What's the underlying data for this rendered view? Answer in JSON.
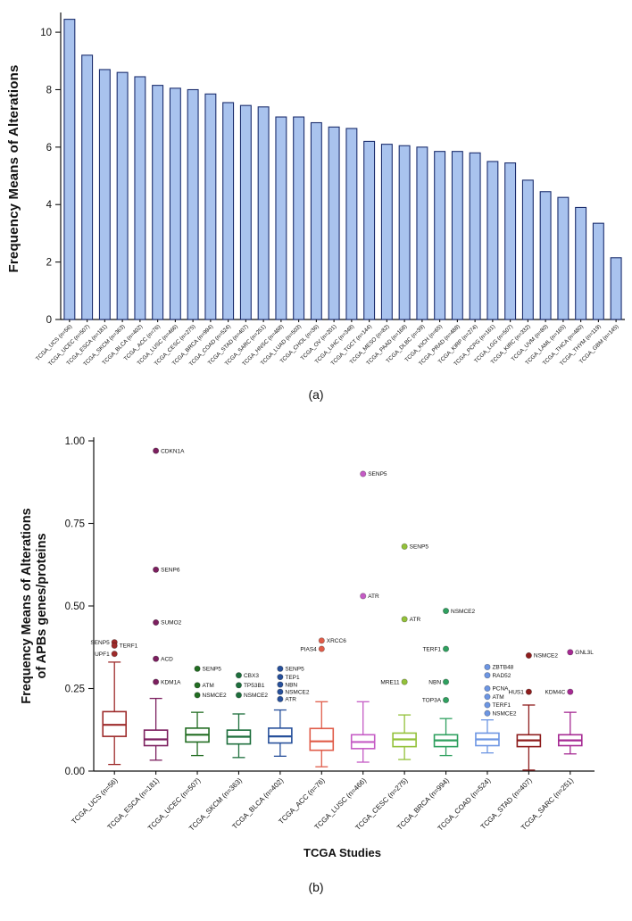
{
  "figure": {
    "panel_a_caption": "(a)",
    "panel_b_caption": "(b)"
  },
  "chart_data": [
    {
      "type": "bar",
      "panel": "a",
      "title": "",
      "ylabel": "Frequency Means of Alterations",
      "xlabel": "",
      "ylim": [
        0,
        10.5
      ],
      "yticks": [
        0,
        2,
        4,
        6,
        8,
        10
      ],
      "grid": false,
      "legend": false,
      "bar_fill": "#a9c3ee",
      "bar_stroke": "#1c2e6e",
      "categories": [
        "TCGA_UCS (n=56)",
        "TCGA_UCEC (n=507)",
        "TCGA_ESCA (n=181)",
        "TCGA_SKCM (n=363)",
        "TCGA_BLCA (n=402)",
        "TCGA_ACC (n=76)",
        "TCGA_LUSC (n=466)",
        "TCGA_CESC (n=275)",
        "TCGA_BRCA (n=994)",
        "TCGA_COAD (n=524)",
        "TCGA_STAD (n=407)",
        "TCGA_SARC (n=251)",
        "TCGA_HNSC (n=488)",
        "TCGA_LUAD (n=503)",
        "TCGA_CHOL (n=36)",
        "TCGA_OV (n=201)",
        "TCGA_LIHC (n=348)",
        "TCGA_TGCT (n=144)",
        "TCGA_MESO (n=82)",
        "TCGA_PAAD (n=168)",
        "TCGA_DLBC (n=39)",
        "TCGA_KICH (n=65)",
        "TCGA_PRAD (n=488)",
        "TCGA_KIRP (n=274)",
        "TCGA_PCPG (n=161)",
        "TCGA_LGG (n=507)",
        "TCGA_KIRC (n=332)",
        "TCGA_UVM (n=80)",
        "TCGA_LAML (n=165)",
        "TCGA_THCA (n=480)",
        "TCGA_THYM (n=119)",
        "TCGA_GBM (n=145)"
      ],
      "values": [
        10.45,
        9.2,
        8.7,
        8.6,
        8.45,
        8.15,
        8.05,
        8.0,
        7.85,
        7.55,
        7.45,
        7.4,
        7.05,
        7.05,
        6.85,
        6.7,
        6.65,
        6.2,
        6.1,
        6.05,
        6.0,
        5.85,
        5.85,
        5.8,
        5.5,
        5.45,
        4.85,
        4.45,
        4.25,
        3.9,
        3.35,
        2.15
      ]
    },
    {
      "type": "box",
      "panel": "b",
      "title": "",
      "ylabel_line1": "Frequency Means of  Alterations",
      "ylabel_line2": "of APBs genes/proteins",
      "xlabel": "TCGA Studies",
      "ylim": [
        0,
        1.0
      ],
      "grid": false,
      "legend": false,
      "yticks": [
        {
          "v": 0,
          "label": "0.00"
        },
        {
          "v": 0.25,
          "label": "0.25"
        },
        {
          "v": 0.5,
          "label": "0.50"
        },
        {
          "v": 0.75,
          "label": "0.75"
        },
        {
          "v": 1.0,
          "label": "1.00"
        }
      ],
      "boxes": [
        {
          "label": "TCGA_UCS (n=56)",
          "color": "#9e2b2b",
          "whisker_low": 0.02,
          "q1": 0.105,
          "median": 0.14,
          "q3": 0.18,
          "whisker_high": 0.33,
          "outliers": [
            {
              "name": "SENP5",
              "value": 0.39,
              "side": "left"
            },
            {
              "name": "TERF1",
              "value": 0.38,
              "side": "right"
            },
            {
              "name": "UPF1",
              "value": 0.355,
              "side": "left"
            }
          ]
        },
        {
          "label": "TCGA_ESCA (n=181)",
          "color": "#7c1f5f",
          "whisker_low": 0.033,
          "q1": 0.077,
          "median": 0.096,
          "q3": 0.124,
          "whisker_high": 0.22,
          "outliers": [
            {
              "name": "CDKN1A",
              "value": 0.97,
              "side": "right"
            },
            {
              "name": "SENP6",
              "value": 0.61,
              "side": "right"
            },
            {
              "name": "SUMO2",
              "value": 0.45,
              "side": "right"
            },
            {
              "name": "ACD",
              "value": 0.34,
              "side": "right"
            },
            {
              "name": "KDM1A",
              "value": 0.27,
              "side": "right"
            }
          ]
        },
        {
          "label": "TCGA_UCEC (n=507)",
          "color": "#226d22",
          "whisker_low": 0.047,
          "q1": 0.088,
          "median": 0.11,
          "q3": 0.13,
          "whisker_high": 0.178,
          "outliers": [
            {
              "name": "SENP5",
              "value": 0.31,
              "side": "right"
            },
            {
              "name": "ATM",
              "value": 0.26,
              "side": "right"
            },
            {
              "name": "NSMCE2",
              "value": 0.23,
              "side": "right"
            }
          ]
        },
        {
          "label": "TCGA_SKCM (n=363)",
          "color": "#1d6e3c",
          "whisker_low": 0.041,
          "q1": 0.082,
          "median": 0.104,
          "q3": 0.124,
          "whisker_high": 0.173,
          "outliers": [
            {
              "name": "CBX3",
              "value": 0.29,
              "side": "right"
            },
            {
              "name": "TP53B1",
              "value": 0.26,
              "side": "right"
            },
            {
              "name": "NSMCE2",
              "value": 0.23,
              "side": "right"
            }
          ]
        },
        {
          "label": "TCGA_BLCA (n=402)",
          "color": "#27509b",
          "whisker_low": 0.045,
          "q1": 0.085,
          "median": 0.105,
          "q3": 0.13,
          "whisker_high": 0.185,
          "outliers": [
            {
              "name": "SENP5",
              "value": 0.31,
              "side": "right"
            },
            {
              "name": "TEP1",
              "value": 0.285,
              "side": "right"
            },
            {
              "name": "NBN",
              "value": 0.262,
              "side": "right"
            },
            {
              "name": "NSMCE2",
              "value": 0.24,
              "side": "right"
            },
            {
              "name": "ATR",
              "value": 0.218,
              "side": "right"
            }
          ]
        },
        {
          "label": "TCGA_ACC (n=76)",
          "color": "#e05c49",
          "whisker_low": 0.013,
          "q1": 0.063,
          "median": 0.09,
          "q3": 0.129,
          "whisker_high": 0.21,
          "outliers": [
            {
              "name": "XRCC6",
              "value": 0.395,
              "side": "right"
            },
            {
              "name": "PIAS4",
              "value": 0.37,
              "side": "left"
            }
          ]
        },
        {
          "label": "TCGA_LUSC (n=466)",
          "color": "#c55bc5",
          "whisker_low": 0.027,
          "q1": 0.068,
          "median": 0.088,
          "q3": 0.11,
          "whisker_high": 0.21,
          "outliers": [
            {
              "name": "SENP5",
              "value": 0.9,
              "side": "right"
            },
            {
              "name": "ATR",
              "value": 0.53,
              "side": "right"
            }
          ]
        },
        {
          "label": "TCGA_CESC (n=275)",
          "color": "#93c13a",
          "whisker_low": 0.035,
          "q1": 0.074,
          "median": 0.096,
          "q3": 0.115,
          "whisker_high": 0.17,
          "outliers": [
            {
              "name": "SENP5",
              "value": 0.68,
              "side": "right"
            },
            {
              "name": "ATR",
              "value": 0.46,
              "side": "right"
            },
            {
              "name": "MRE11",
              "value": 0.27,
              "side": "left"
            }
          ]
        },
        {
          "label": "TCGA_BRCA (n=994)",
          "color": "#2fa05f",
          "whisker_low": 0.047,
          "q1": 0.074,
          "median": 0.093,
          "q3": 0.11,
          "whisker_high": 0.159,
          "outliers": [
            {
              "name": "NSMCE2",
              "value": 0.485,
              "side": "right"
            },
            {
              "name": "TERF1",
              "value": 0.37,
              "side": "left"
            },
            {
              "name": "NBN",
              "value": 0.27,
              "side": "left"
            },
            {
              "name": "TOP3A",
              "value": 0.215,
              "side": "left"
            }
          ]
        },
        {
          "label": "TCGA_COAD (n=524)",
          "color": "#6d96e3",
          "whisker_low": 0.055,
          "q1": 0.077,
          "median": 0.096,
          "q3": 0.115,
          "whisker_high": 0.155,
          "outliers": [
            {
              "name": "ZBTB48",
              "value": 0.315,
              "side": "right"
            },
            {
              "name": "RAD52",
              "value": 0.29,
              "side": "right"
            },
            {
              "name": "PCNA",
              "value": 0.25,
              "side": "right"
            },
            {
              "name": "ATM",
              "value": 0.225,
              "side": "right"
            },
            {
              "name": "TERF1",
              "value": 0.2,
              "side": "right"
            },
            {
              "name": "NSMCE2",
              "value": 0.175,
              "side": "right"
            }
          ]
        },
        {
          "label": "TCGA_STAD (n=407)",
          "color": "#8e1d1d",
          "whisker_low": 0.003,
          "q1": 0.074,
          "median": 0.093,
          "q3": 0.11,
          "whisker_high": 0.2,
          "outliers": [
            {
              "name": "NSMCE2",
              "value": 0.35,
              "side": "right"
            },
            {
              "name": "HUS1",
              "value": 0.24,
              "side": "left"
            }
          ]
        },
        {
          "label": "TCGA_SARC (n=251)",
          "color": "#a62a93",
          "whisker_low": 0.052,
          "q1": 0.077,
          "median": 0.093,
          "q3": 0.11,
          "whisker_high": 0.178,
          "outliers": [
            {
              "name": "GNL3L",
              "value": 0.36,
              "side": "right"
            },
            {
              "name": "KDM4C",
              "value": 0.24,
              "side": "left"
            }
          ]
        }
      ]
    }
  ]
}
